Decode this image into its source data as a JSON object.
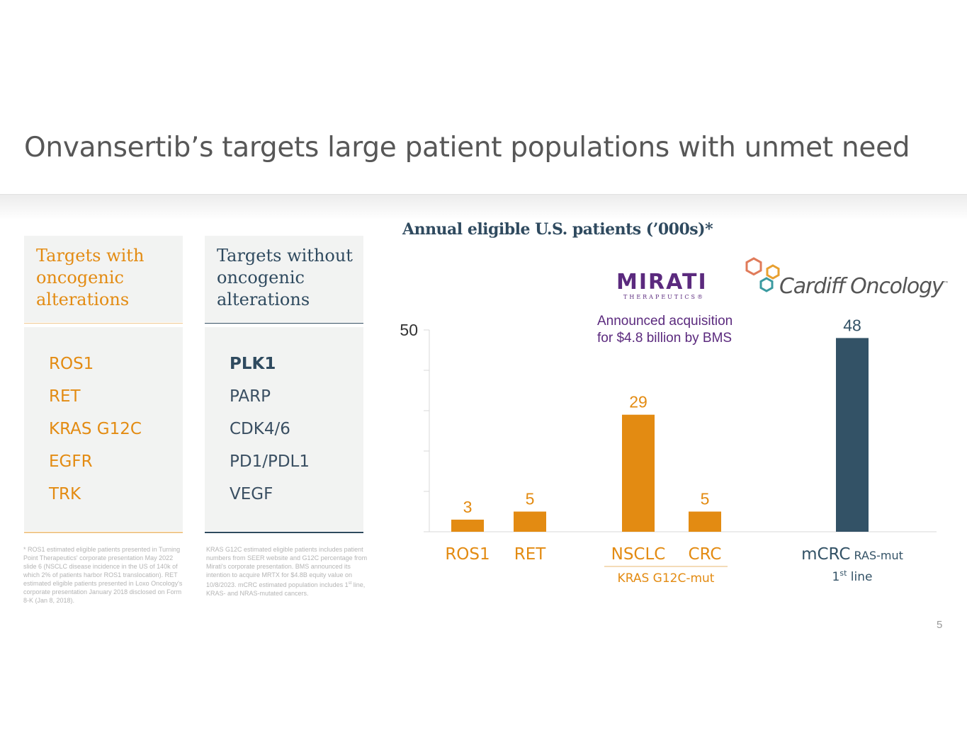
{
  "title": "Onvansertib’s targets large patient populations with unmet need",
  "left_panel": {
    "heading": [
      "Targets with",
      "oncogenic",
      "alterations"
    ],
    "items": [
      "ROS1",
      "RET",
      "KRAS G12C",
      "EGFR",
      "TRK"
    ]
  },
  "right_panel": {
    "heading": [
      "Targets without",
      "oncogenic",
      "alterations"
    ],
    "items": [
      "PLK1",
      "PARP",
      "CDK4/6",
      "PD1/PDL1",
      "VEGF"
    ]
  },
  "footnotes": {
    "left": "* ROS1 estimated eligible patients presented in Turning Point Therapeutics' corporate presentation May 2022 slide 6 (NSCLC disease incidence in the US of 140k of which 2% of patients harbor ROS1 translocation). RET estimated eligible patients presented in Loxo Oncology's corporate presentation January 2018 disclosed on Form 8-K (Jan 8, 2018).",
    "right_before_sup": "KRAS G12C estimated eligible patients includes patient numbers from SEER website and G12C percentage from Mirati's corporate presentation. BMS announced its intention to acquire MRTX for $4.8B equity value on 10/8/2023. mCRC estimated population includes 1",
    "right_sup": "st",
    "right_after_sup": " line, KRAS- and NRAS-mutated cancers."
  },
  "logos": {
    "mirati_word": "MIRATI",
    "mirati_sub": "THERAPEUTICS®",
    "cardiff_word": "Cardiff Oncology",
    "cardiff_tm": "™"
  },
  "announcement": [
    "Announced acquisition",
    "for $4.8 billion by BMS"
  ],
  "colors": {
    "orange": "#e38b12",
    "navy": "#335266",
    "purple": "#5b2a7e",
    "title_gray": "#575757"
  },
  "chart_data": {
    "type": "bar",
    "title": "Annual eligible U.S. patients (’000s)*",
    "categories": [
      "ROS1",
      "RET",
      "NSCLC",
      "CRC",
      "mCRC"
    ],
    "category_suffix": {
      "mCRC": "RAS-mut"
    },
    "values": [
      3,
      5,
      29,
      5,
      48
    ],
    "bar_colors": [
      "#e38b12",
      "#e38b12",
      "#e38b12",
      "#e38b12",
      "#335266"
    ],
    "group_labels": [
      {
        "label": "KRAS G12C-mut",
        "categories": [
          "NSCLC",
          "CRC"
        ]
      }
    ],
    "sub_label": {
      "category": "mCRC",
      "text_base": "1",
      "text_sup": "st",
      "text_tail": " line"
    },
    "ylim": [
      0,
      50
    ],
    "y_tick_label": "50",
    "y_ticks": [
      0,
      10,
      20,
      30,
      40,
      50
    ]
  },
  "page_number": "5"
}
